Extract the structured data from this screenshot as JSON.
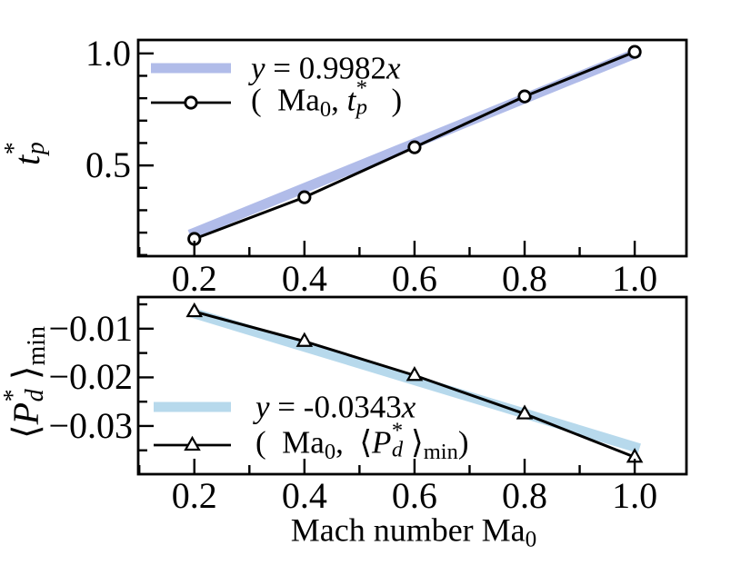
{
  "figure": {
    "background": "#ffffff",
    "frame_color": "#000000",
    "data_line_color": "#000000"
  },
  "x_axis_title": {
    "text": "Mach number Ma0",
    "rich": [
      {
        "t": "Mach number Ma"
      },
      {
        "t": "0",
        "sub": 1
      }
    ]
  },
  "chart_data": [
    {
      "type": "line",
      "panel": "top",
      "title": "",
      "xlabel": "",
      "ylabel": "t_p^*",
      "ylabel_rich": [
        {
          "t": "t",
          "it": 1
        },
        {
          "stack": {
            "sup": "*",
            "sub": "p",
            "it": 1
          }
        }
      ],
      "xlim": [
        0.098,
        1.094
      ],
      "ylim": [
        0.095,
        1.06
      ],
      "xticks": [
        0.2,
        0.4,
        0.6,
        0.8,
        1.0
      ],
      "xtick_labels": [
        "0.2",
        "0.4",
        "0.6",
        "0.8",
        "1.0"
      ],
      "xminor": [
        0.1,
        0.3,
        0.5,
        0.7,
        0.9
      ],
      "yticks": [
        0.5,
        1.0
      ],
      "ytick_labels": [
        "0.5",
        "1.0"
      ],
      "yminor": [
        0.1,
        0.2,
        0.3,
        0.4,
        0.6,
        0.7,
        0.8,
        0.9
      ],
      "series": [
        {
          "kind": "fit_band",
          "label": "y = 0.9982x",
          "label_rich": [
            {
              "t": "y",
              "it": 1
            },
            {
              "t": " = 0.9982"
            },
            {
              "t": "x",
              "it": 1
            }
          ],
          "slope": 0.9982,
          "x_range": [
            0.2,
            1.0
          ],
          "color": "#b1bce9",
          "band_width": 11
        },
        {
          "kind": "line_markers",
          "label": "( Ma0, tp* )",
          "label_rich": [
            {
              "t": "(  Ma"
            },
            {
              "t": "0",
              "sub": 1
            },
            {
              "t": ", "
            },
            {
              "t": "t",
              "it": 1
            },
            {
              "stack": {
                "sup": "*",
                "sub": "p",
                "it": 1
              }
            },
            {
              "t": "  )"
            }
          ],
          "marker": "circle",
          "color": "#000000",
          "x": [
            0.2,
            0.4,
            0.6,
            0.8,
            1.0
          ],
          "y": [
            0.172,
            0.358,
            0.581,
            0.808,
            1.007
          ]
        }
      ]
    },
    {
      "type": "line",
      "panel": "bottom",
      "title": "",
      "xlabel": "Mach number Ma0",
      "ylabel": "<Pd*>min",
      "ylabel_rich": [
        {
          "t": "⟨"
        },
        {
          "t": "P",
          "it": 1
        },
        {
          "stack": {
            "sup": "*",
            "sub": "d",
            "it": 1
          }
        },
        {
          "t": "⟩"
        },
        {
          "t": "min",
          "sub": 1
        }
      ],
      "xlim": [
        0.098,
        1.094
      ],
      "ylim": [
        -0.0399,
        -0.0035
      ],
      "xticks": [
        0.2,
        0.4,
        0.6,
        0.8,
        1.0
      ],
      "xtick_labels": [
        "0.2",
        "0.4",
        "0.6",
        "0.8",
        "1.0"
      ],
      "xminor": [
        0.1,
        0.3,
        0.5,
        0.7,
        0.9
      ],
      "yticks": [
        -0.01,
        -0.02,
        -0.03
      ],
      "ytick_labels": [
        "−0.01",
        "−0.02",
        "−0.03"
      ],
      "yminor": [
        -0.005,
        -0.015,
        -0.025,
        -0.035
      ],
      "series": [
        {
          "kind": "fit_band",
          "label": "y = -0.0343x",
          "label_rich": [
            {
              "t": "y",
              "it": 1
            },
            {
              "t": " = -0.0343"
            },
            {
              "t": "x",
              "it": 1
            }
          ],
          "slope": -0.0343,
          "x_range": [
            0.2,
            1.0
          ],
          "color": "#b7d9ec",
          "band_width": 11
        },
        {
          "kind": "line_markers",
          "label": "( Ma0, <Pd*>min)",
          "label_rich": [
            {
              "t": "(  Ma"
            },
            {
              "t": "0",
              "sub": 1
            },
            {
              "t": ",  "
            },
            {
              "t": "⟨"
            },
            {
              "t": "P",
              "it": 1
            },
            {
              "stack": {
                "sup": "*",
                "sub": "d",
                "it": 1
              }
            },
            {
              "t": "⟩"
            },
            {
              "t": "min",
              "sub": 1
            },
            {
              "t": ")"
            }
          ],
          "marker": "triangle",
          "color": "#000000",
          "x": [
            0.2,
            0.4,
            0.6,
            0.8,
            1.0
          ],
          "y": [
            -0.0065,
            -0.0126,
            -0.0196,
            -0.0275,
            -0.0364
          ]
        }
      ]
    }
  ]
}
